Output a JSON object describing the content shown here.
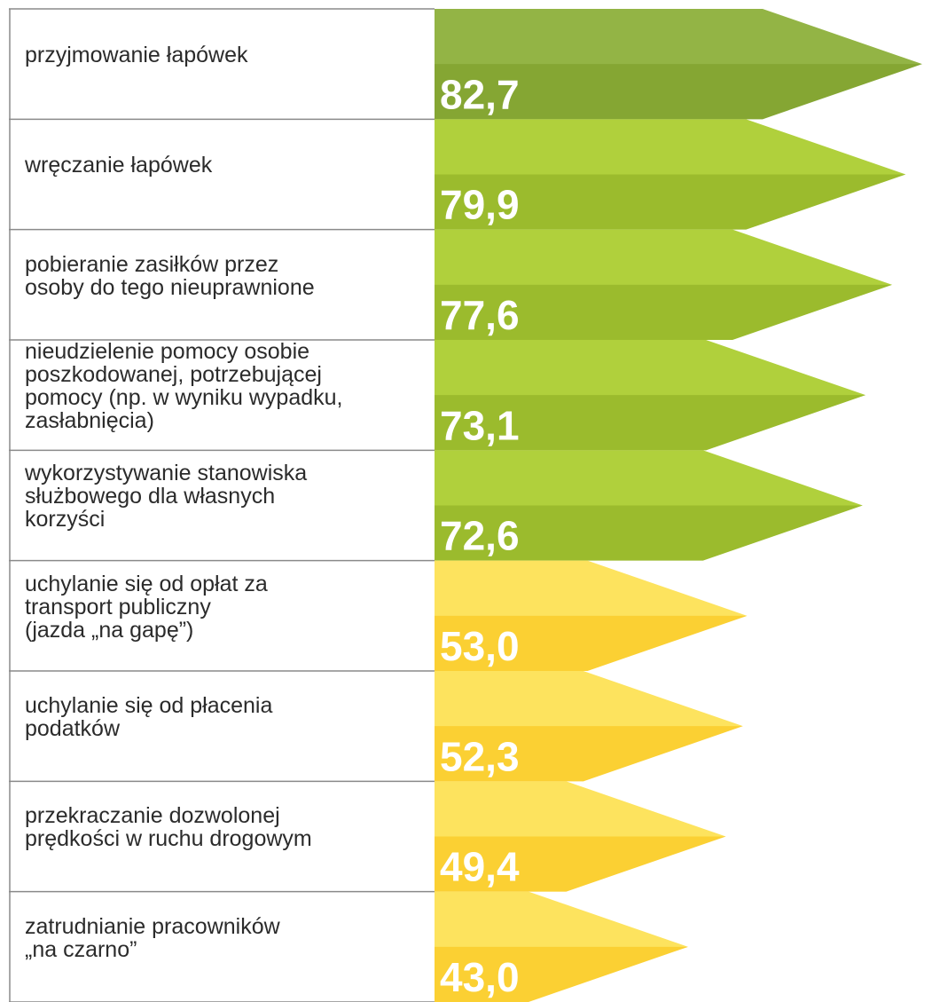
{
  "chart_data": {
    "type": "bar",
    "categories": [
      "przyjmowanie łapówek",
      "wręczanie łapówek",
      "pobieranie zasiłków przez\nosoby do tego nieuprawnione",
      "nieudzielenie pomocy osobie\nposzkodowanej, potrzebującej\npomocy (np. w wyniku wypadku,\nzasłabnięcia)",
      "wykorzystywanie stanowiska\nsłużbowego dla własnych\nkorzyści",
      "uchylanie się od opłat za\ntransport publiczny\n(jazda „na gapę”)",
      "uchylanie się od płacenia\npodatków",
      "przekraczanie dozwolonej\nprędkości w ruchu drogowym",
      "zatrudnianie pracowników\n„na czarno”"
    ],
    "values": [
      82.7,
      79.9,
      77.6,
      73.1,
      72.6,
      53.0,
      52.3,
      49.4,
      43.0
    ],
    "value_labels": [
      "82,7",
      "79,9",
      "77,6",
      "73,1",
      "72,6",
      "53,0",
      "52,3",
      "49,4",
      "43,0"
    ],
    "colors": [
      "#93b445",
      "#b0d03c",
      "#b0d03c",
      "#b0d03c",
      "#b0d03c",
      "#fde35e",
      "#fde35e",
      "#fde35e",
      "#fde35e"
    ]
  }
}
